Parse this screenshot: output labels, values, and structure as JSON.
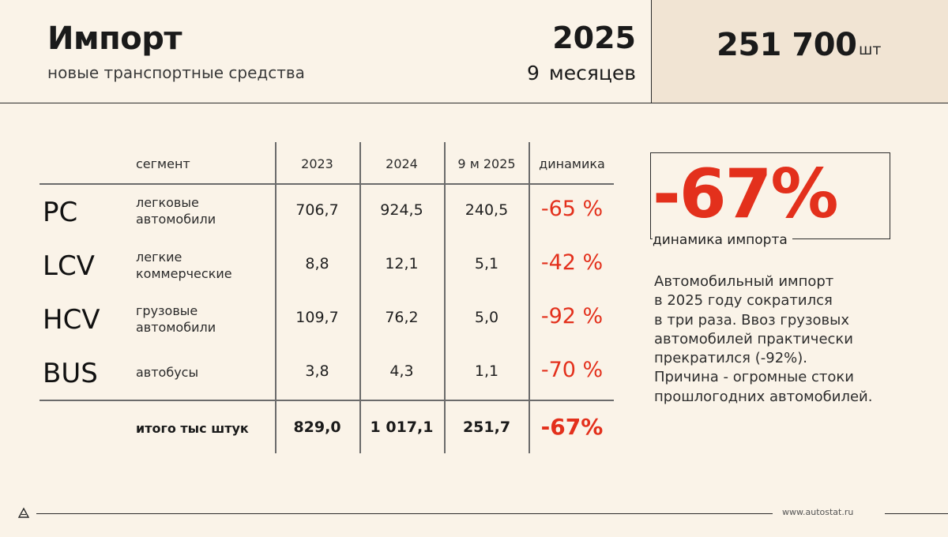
{
  "header": {
    "title": "Импорт",
    "subtitle": "новые транспортные средства",
    "year": "2025",
    "period": "9 месяцев",
    "total_value": "251 700",
    "total_unit": "шт"
  },
  "table": {
    "headers": {
      "segment": "сегмент",
      "y2023": "2023",
      "y2024": "2024",
      "y2025": "9 м 2025",
      "dynamics": "динамика"
    },
    "rows": [
      {
        "code": "PC",
        "seg1": "легковые",
        "seg2": "автомобили",
        "v2023": "706,7",
        "v2024": "924,5",
        "v2025": "240,5",
        "dyn": "-65 %"
      },
      {
        "code": "LCV",
        "seg1": "легкие",
        "seg2": "коммерческие",
        "v2023": "8,8",
        "v2024": "12,1",
        "v2025": "5,1",
        "dyn": "-42 %"
      },
      {
        "code": "HCV",
        "seg1": "грузовые",
        "seg2": "автомобили",
        "v2023": "109,7",
        "v2024": "76,2",
        "v2025": "5,0",
        "dyn": "-92 %"
      },
      {
        "code": "BUS",
        "seg1": "автобусы",
        "seg2": "",
        "v2023": "3,8",
        "v2024": "4,3",
        "v2025": "1,1",
        "dyn": "-70 %"
      }
    ],
    "total": {
      "label": "итого тыс штук",
      "v2023": "829,0",
      "v2024": "1 017,1",
      "v2025": "251,7",
      "dyn": "-67%"
    }
  },
  "summary": {
    "big_value": "-67%",
    "caption": "динамика импорта",
    "lines": [
      "Автомобильный импорт",
      "в 2025 году сократился",
      "в три раза. Ввоз грузовых",
      "автомобилей практически",
      "прекратился (-92%).",
      "Причина - огромные стоки",
      "прошлогодних автомобилей."
    ]
  },
  "footer": {
    "url": "www.autostat.ru"
  },
  "colors": {
    "background": "#faf3e8",
    "accent": "#e3301c",
    "total_box": "#f1e4d3"
  }
}
